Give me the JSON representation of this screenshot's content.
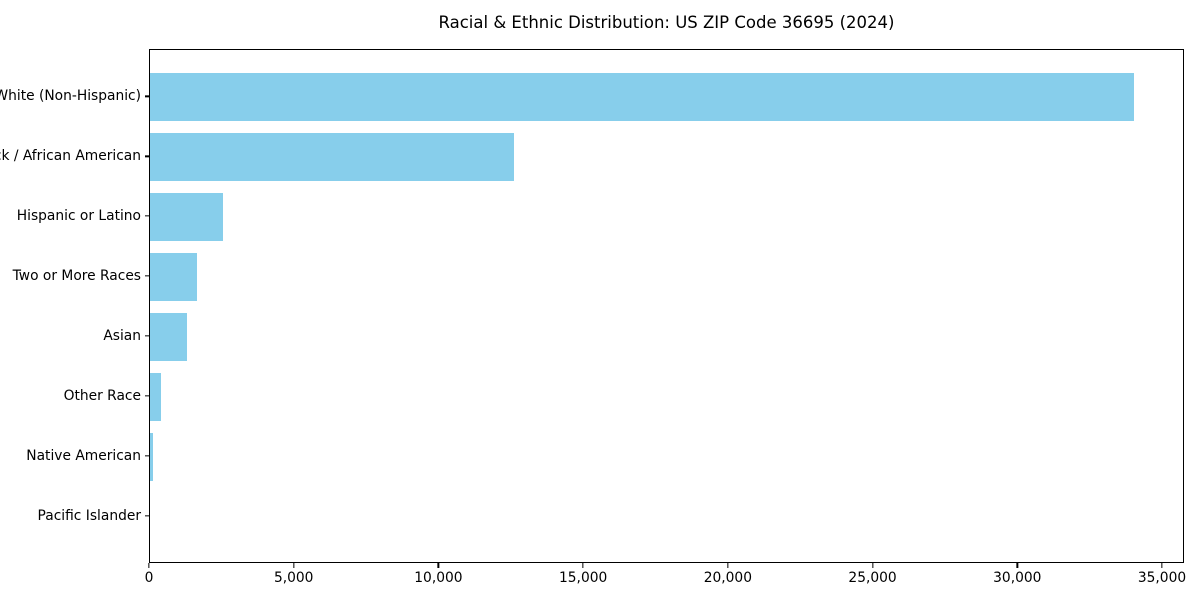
{
  "chart_data": {
    "type": "bar",
    "orientation": "horizontal",
    "title": "Racial & Ethnic Distribution: US ZIP Code 36695 (2024)",
    "categories": [
      "White (Non-Hispanic)",
      "Black / African American",
      "Hispanic or Latino",
      "Two or More Races",
      "Asian",
      "Other Race",
      "Native American",
      "Pacific Islander"
    ],
    "values": [
      34080,
      12590,
      2530,
      1620,
      1290,
      380,
      100,
      0
    ],
    "xlabel": "",
    "ylabel": "",
    "xlim": [
      0,
      35760
    ],
    "xticks": [
      0,
      5000,
      10000,
      15000,
      20000,
      25000,
      30000,
      35000
    ],
    "xtick_labels": [
      "0",
      "5,000",
      "10,000",
      "15,000",
      "20,000",
      "25,000",
      "30,000",
      "35,000"
    ],
    "bar_color": "#87CEEB",
    "text_color": "#000000",
    "grid": false,
    "legend": null
  }
}
